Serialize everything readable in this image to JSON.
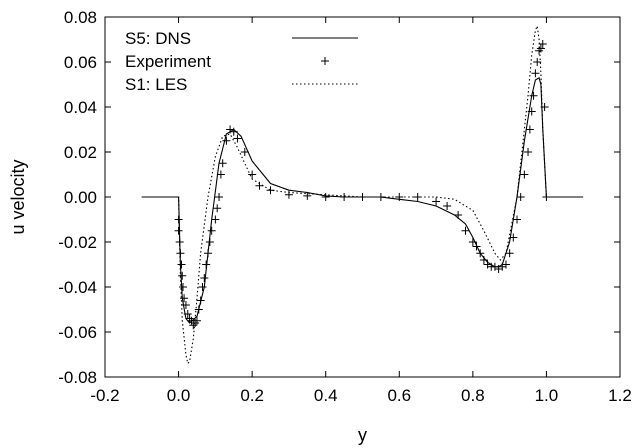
{
  "chart_data": {
    "type": "line",
    "xlabel": "y",
    "ylabel": "u velocity",
    "xlim": [
      -0.2,
      1.2
    ],
    "ylim": [
      -0.08,
      0.08
    ],
    "x_ticks": [
      "-0.2",
      "0.0",
      "0.2",
      "0.4",
      "0.6",
      "0.8",
      "1.0",
      "1.2"
    ],
    "y_ticks": [
      "0.08",
      "0.06",
      "0.04",
      "0.02",
      "0.00",
      "-0.02",
      "-0.04",
      "-0.06",
      "-0.08"
    ],
    "grid": false,
    "legend_position": "top-left",
    "series": [
      {
        "name": "S5: DNS",
        "style": "solid",
        "color": "#000000",
        "x": [
          -0.1,
          0.0,
          0.005,
          0.01,
          0.02,
          0.03,
          0.05,
          0.07,
          0.09,
          0.11,
          0.13,
          0.15,
          0.17,
          0.2,
          0.25,
          0.3,
          0.35,
          0.4,
          0.45,
          0.5,
          0.55,
          0.6,
          0.65,
          0.7,
          0.75,
          0.78,
          0.8,
          0.82,
          0.84,
          0.86,
          0.87,
          0.88,
          0.9,
          0.92,
          0.94,
          0.96,
          0.97,
          0.98,
          0.985,
          0.99,
          1.0,
          1.1
        ],
        "y": [
          0.0,
          0.0,
          -0.03,
          -0.045,
          -0.054,
          -0.056,
          -0.053,
          -0.04,
          -0.01,
          0.015,
          0.028,
          0.03,
          0.027,
          0.016,
          0.006,
          0.003,
          0.002,
          0.0005,
          0.0,
          0.0,
          0.0,
          -0.001,
          -0.002,
          -0.004,
          -0.008,
          -0.012,
          -0.018,
          -0.025,
          -0.029,
          -0.031,
          -0.031,
          -0.03,
          -0.02,
          0.0,
          0.025,
          0.045,
          0.052,
          0.053,
          0.05,
          0.03,
          0.0,
          0.0
        ]
      },
      {
        "name": "Experiment",
        "style": "markers",
        "marker": "+",
        "color": "#000000",
        "x": [
          0.0,
          0.0,
          0.003,
          0.005,
          0.008,
          0.01,
          0.012,
          0.015,
          0.02,
          0.025,
          0.03,
          0.035,
          0.04,
          0.045,
          0.05,
          0.055,
          0.06,
          0.065,
          0.07,
          0.075,
          0.08,
          0.085,
          0.09,
          0.1,
          0.105,
          0.11,
          0.115,
          0.12,
          0.13,
          0.14,
          0.15,
          0.16,
          0.18,
          0.2,
          0.22,
          0.25,
          0.3,
          0.35,
          0.4,
          0.45,
          0.5,
          0.55,
          0.6,
          0.65,
          0.7,
          0.73,
          0.76,
          0.78,
          0.8,
          0.81,
          0.82,
          0.83,
          0.84,
          0.85,
          0.86,
          0.87,
          0.88,
          0.89,
          0.9,
          0.91,
          0.92,
          0.93,
          0.94,
          0.95,
          0.955,
          0.96,
          0.965,
          0.97,
          0.975,
          0.98,
          0.985,
          0.99,
          0.995,
          1.0
        ],
        "y": [
          -0.01,
          -0.015,
          -0.02,
          -0.025,
          -0.03,
          -0.035,
          -0.04,
          -0.045,
          -0.048,
          -0.052,
          -0.054,
          -0.055,
          -0.057,
          -0.056,
          -0.055,
          -0.05,
          -0.046,
          -0.04,
          -0.036,
          -0.03,
          -0.025,
          -0.02,
          -0.015,
          -0.01,
          -0.005,
          0.0,
          0.01,
          0.015,
          0.025,
          0.03,
          0.029,
          0.026,
          0.02,
          0.01,
          0.005,
          0.003,
          0.001,
          0.0005,
          0.0,
          0.0,
          0.0,
          0.0,
          0.0,
          0.0,
          -0.002,
          -0.004,
          -0.008,
          -0.015,
          -0.02,
          -0.022,
          -0.025,
          -0.028,
          -0.03,
          -0.031,
          -0.031,
          -0.032,
          -0.031,
          -0.03,
          -0.025,
          -0.018,
          -0.01,
          0.0,
          0.01,
          0.02,
          0.03,
          0.038,
          0.045,
          0.055,
          0.06,
          0.065,
          0.066,
          0.068,
          0.04,
          0.0
        ]
      },
      {
        "name": "S1: LES",
        "style": "dotted",
        "color": "#000000",
        "x": [
          -0.1,
          0.0,
          0.005,
          0.01,
          0.02,
          0.025,
          0.03,
          0.04,
          0.05,
          0.06,
          0.08,
          0.1,
          0.12,
          0.14,
          0.16,
          0.2,
          0.25,
          0.3,
          0.4,
          0.5,
          0.6,
          0.7,
          0.75,
          0.8,
          0.83,
          0.86,
          0.875,
          0.89,
          0.92,
          0.95,
          0.96,
          0.97,
          0.975,
          0.98,
          0.985,
          0.99,
          1.0,
          1.1
        ],
        "y": [
          0.0,
          0.0,
          -0.035,
          -0.055,
          -0.07,
          -0.074,
          -0.073,
          -0.063,
          -0.045,
          -0.025,
          0.0,
          0.018,
          0.027,
          0.028,
          0.022,
          0.008,
          0.003,
          0.002,
          0.001,
          0.0,
          0.0,
          0.0,
          -0.001,
          -0.006,
          -0.015,
          -0.025,
          -0.028,
          -0.025,
          0.0,
          0.045,
          0.063,
          0.074,
          0.076,
          0.07,
          0.055,
          0.03,
          0.0,
          0.0
        ]
      }
    ]
  }
}
